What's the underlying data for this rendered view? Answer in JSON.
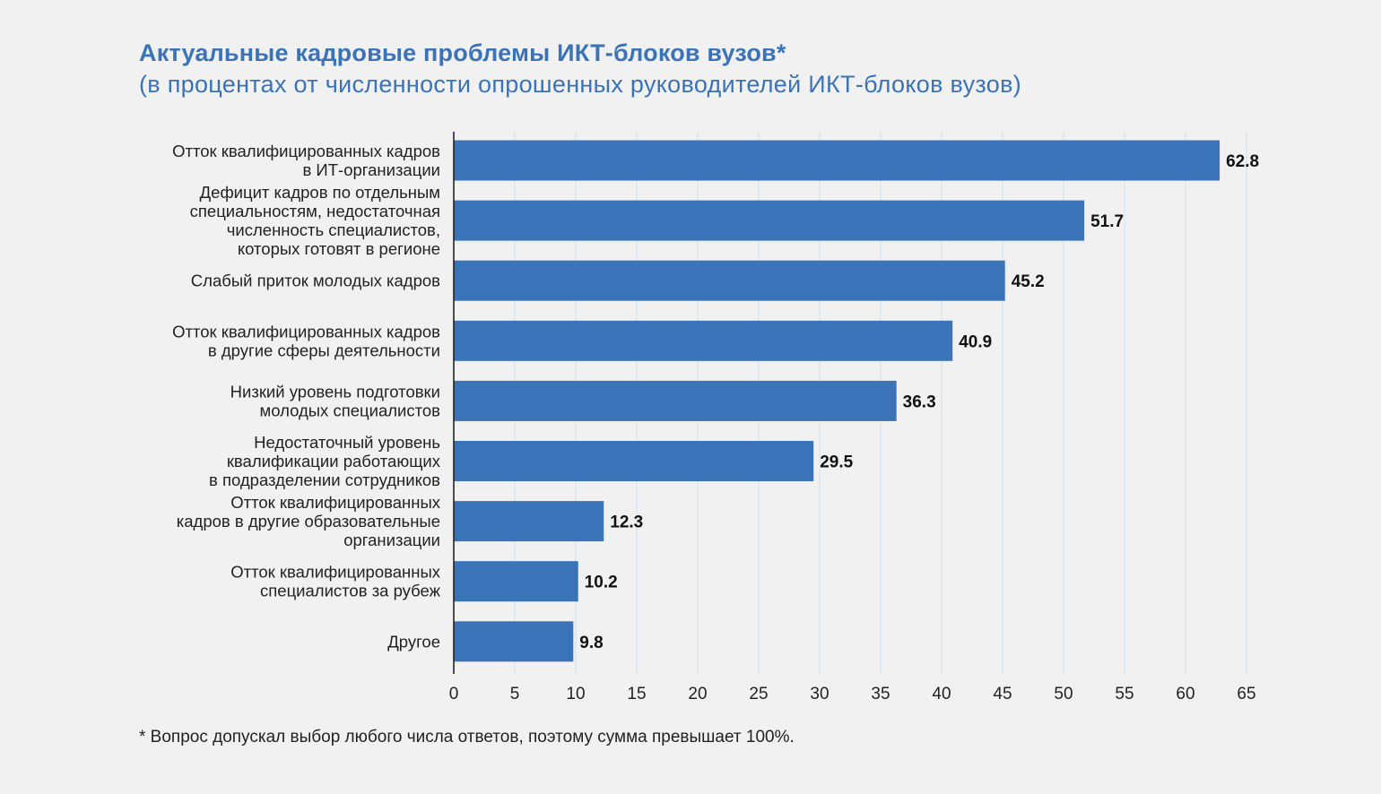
{
  "chart_data": {
    "type": "bar",
    "orientation": "horizontal",
    "title": "Актуальные кадровые проблемы ИКТ-блоков вузов*",
    "subtitle": "(в процентах от численности опрошенных руководителей ИКТ-блоков вузов)",
    "categories": [
      [
        "Отток квалифицированных кадров",
        "в ИТ-организации"
      ],
      [
        "Дефицит кадров по отдельным",
        "специальностям, недостаточная",
        "численность специалистов,",
        "которых готовят в регионе"
      ],
      [
        "Слабый приток молодых кадров"
      ],
      [
        "Отток квалифицированных кадров",
        "в другие сферы деятельности"
      ],
      [
        "Низкий уровень подготовки",
        "молодых специалистов"
      ],
      [
        "Недостаточный уровень",
        "квалификации работающих",
        "в подразделении сотрудников"
      ],
      [
        "Отток квалифицированных",
        "кадров в другие образовательные",
        "организации"
      ],
      [
        "Отток квалифицированных",
        "специалистов за рубеж"
      ],
      [
        "Другое"
      ]
    ],
    "values": [
      62.8,
      51.7,
      45.2,
      40.9,
      36.3,
      29.5,
      12.3,
      10.2,
      9.8
    ],
    "value_labels": [
      "62.8",
      "51.7",
      "45.2",
      "40.9",
      "36.3",
      "29.5",
      "12.3",
      "10.2",
      "9.8"
    ],
    "xticks": [
      "0",
      "5",
      "10",
      "15",
      "20",
      "25",
      "30",
      "35",
      "40",
      "45",
      "50",
      "55",
      "60",
      "65"
    ],
    "xlim": [
      0,
      65
    ],
    "grid": true,
    "legend": "none",
    "bar_color": "#3b73b9",
    "grid_color": "#d7e3ec",
    "axis_color": "#222222"
  },
  "footnote": "* Вопрос допускал выбор любого числа ответов, поэтому сумма превышает 100%."
}
